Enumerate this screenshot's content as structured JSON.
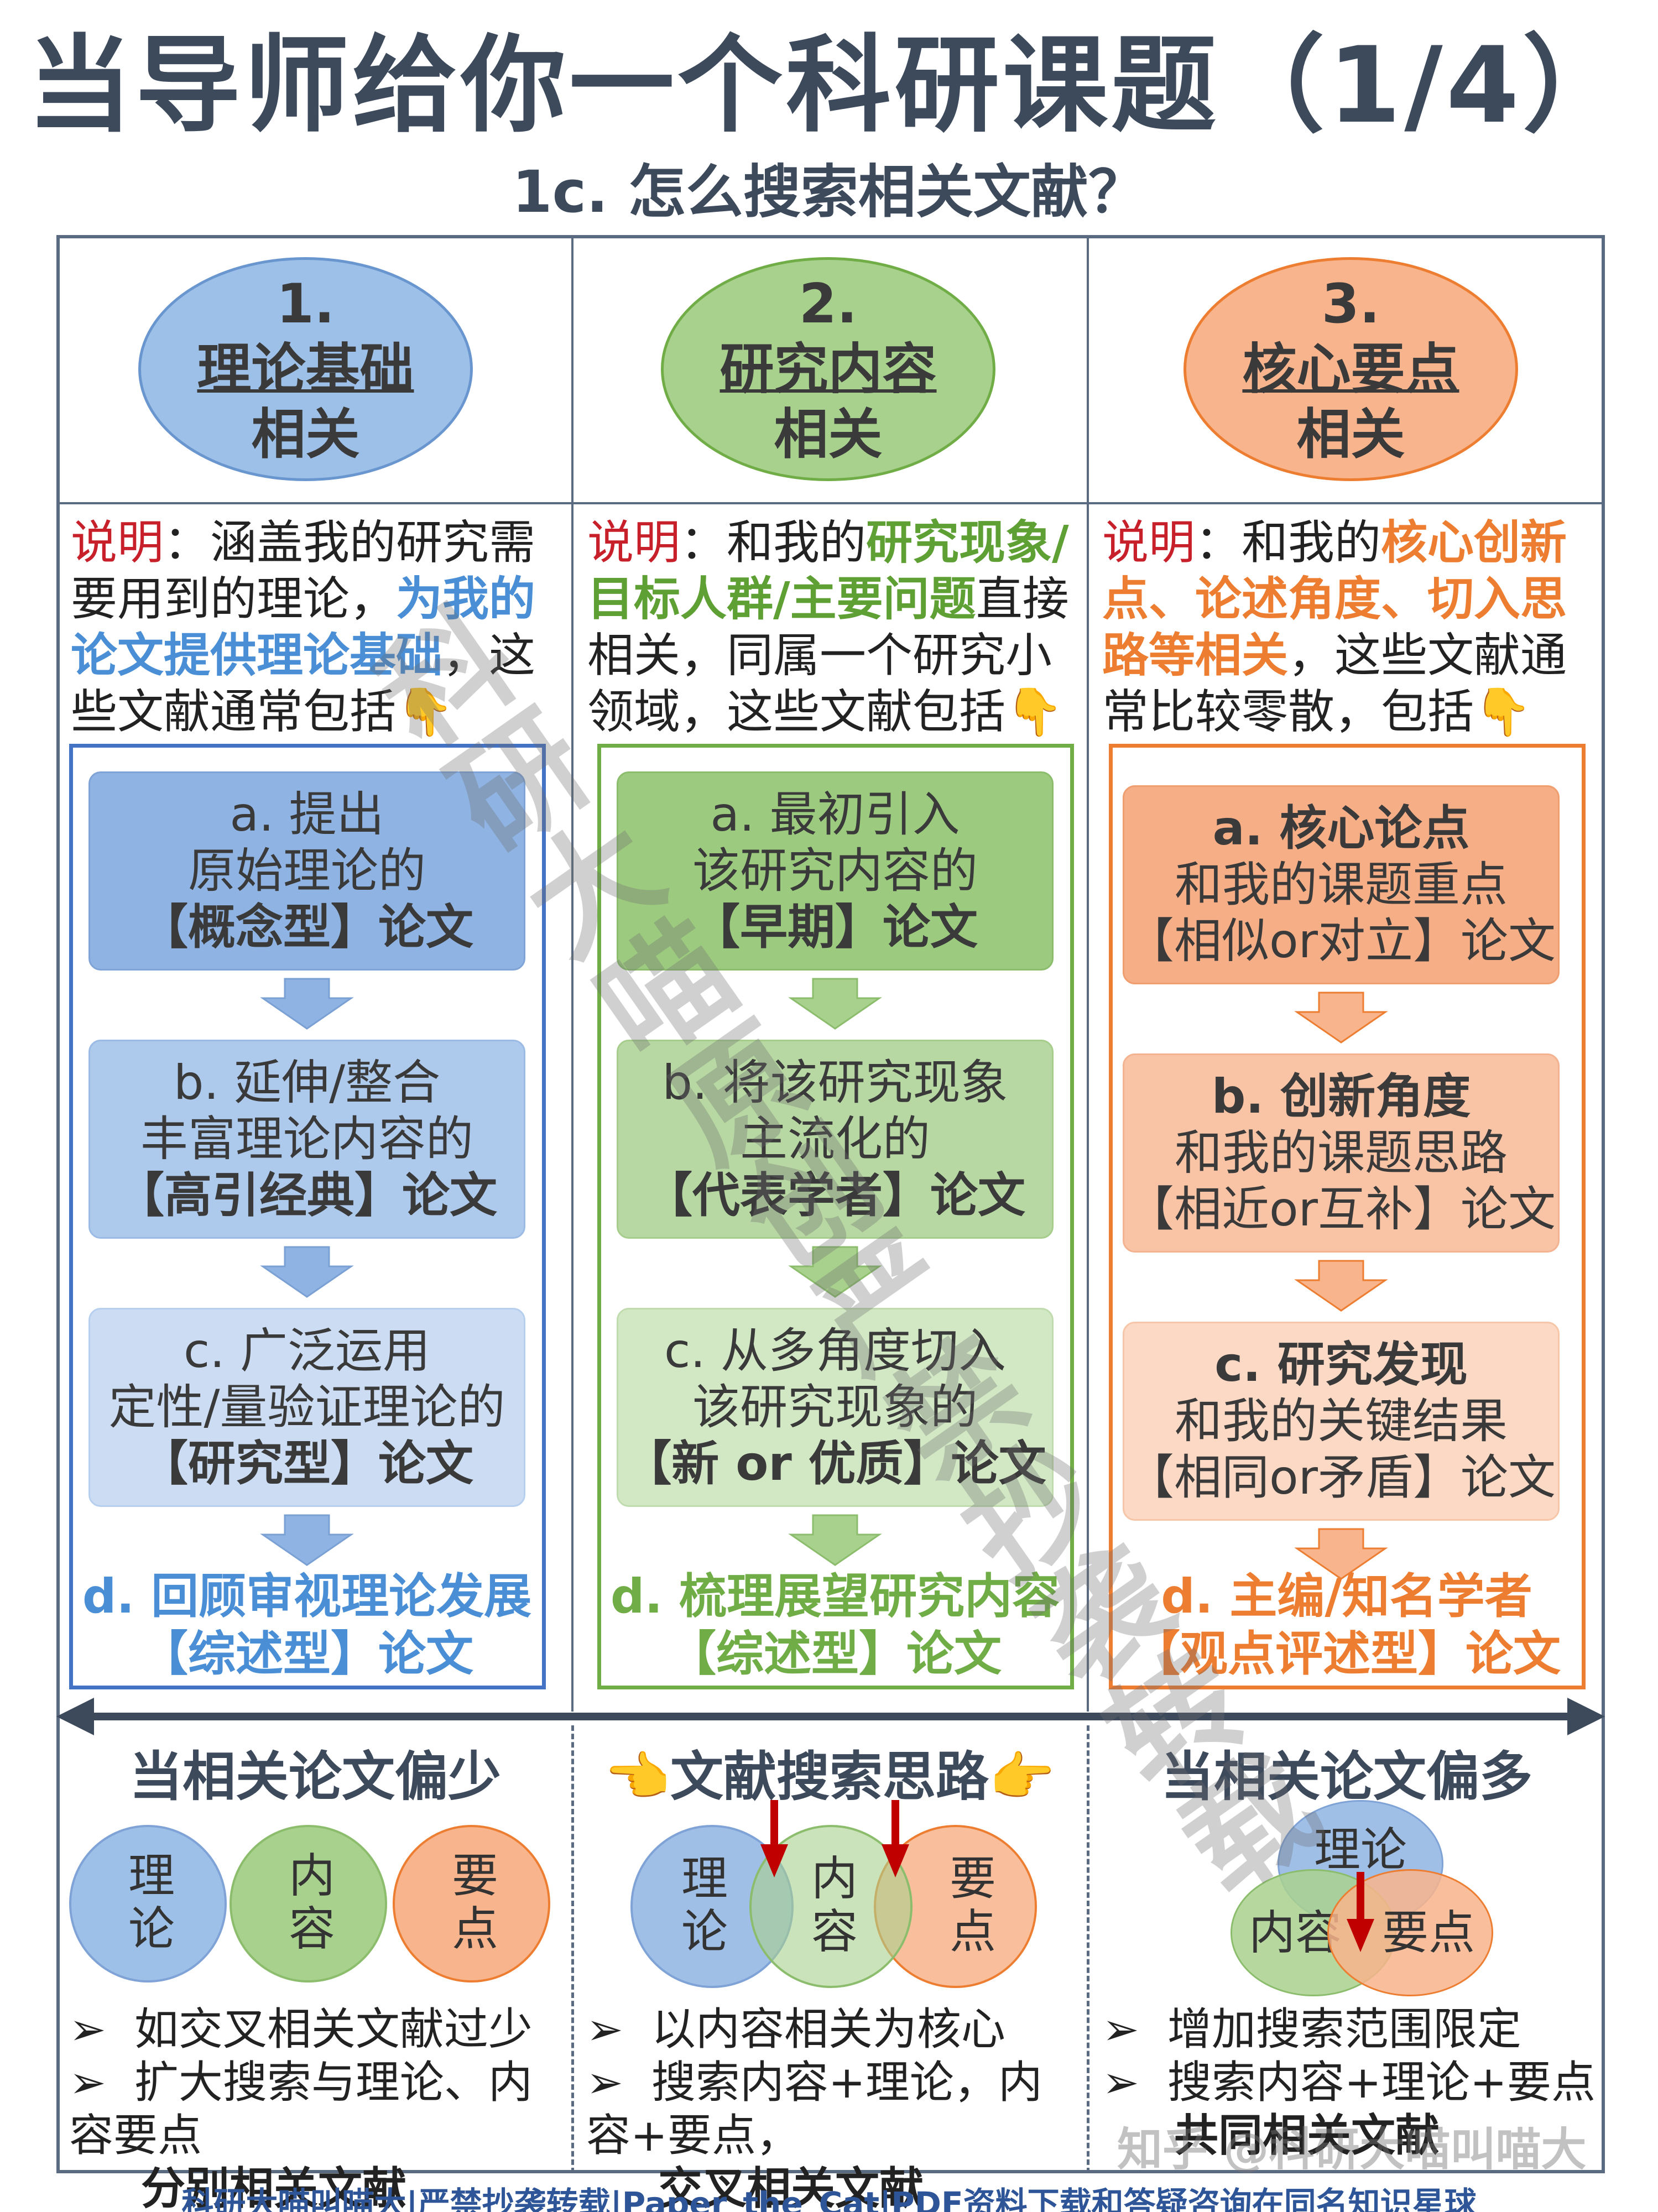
{
  "title": "当导师给你一个科研课题（1/4）",
  "subtitle": "1c. 怎么搜索相关文献？",
  "colors": {
    "blue": "#4472c4",
    "green": "#70ad47",
    "orange": "#ed7d31",
    "red": "#c8202a"
  },
  "columns": [
    {
      "num": "1.",
      "name": "理论基础",
      "suffix": "相关",
      "desc_label": "说明",
      "desc_parts": [
        "：涵盖我的研究需要用到的理论，",
        "为我的论文提供理论基础",
        "，这些文献通常包括👇"
      ],
      "items": [
        {
          "lines": [
            "a. 提出",
            "原始理论的",
            "【概念型】论文"
          ]
        },
        {
          "lines": [
            "b. 延伸/整合",
            "丰富理论内容的",
            "【高引经典】论文"
          ]
        },
        {
          "lines": [
            "c. 广泛运用",
            "定性/量验证理论的",
            "【研究型】论文"
          ]
        }
      ],
      "summary": [
        "d. 回顾审视理论发展",
        "【综述型】论文"
      ]
    },
    {
      "num": "2.",
      "name": "研究内容",
      "suffix": "相关",
      "desc_label": "说明",
      "desc_parts": [
        "：和我的",
        "研究现象/目标人群/主要问题",
        "直接相关，同属一个研究小领域，这些文献包括👇"
      ],
      "items": [
        {
          "lines": [
            "a. 最初引入",
            "该研究内容的",
            "【早期】论文"
          ]
        },
        {
          "lines": [
            "b. 将该研究现象",
            "主流化的",
            "【代表学者】论文"
          ]
        },
        {
          "lines": [
            "c. 从多角度切入",
            "该研究现象的",
            "【新 or 优质】论文"
          ]
        }
      ],
      "summary": [
        "d. 梳理展望研究内容",
        "【综述型】论文"
      ]
    },
    {
      "num": "3.",
      "name": "核心要点",
      "suffix": "相关",
      "desc_label": "说明",
      "desc_parts": [
        "：和我的",
        "核心创新点、论述角度、切入思路等相关",
        "，这些文献通常比较零散，包括👇"
      ],
      "items": [
        {
          "lines": [
            "a. 核心论点",
            "和我的课题重点",
            "【相似or对立】论文"
          ]
        },
        {
          "lines": [
            "b. 创新角度",
            "和我的课题思路",
            "【相近or互补】论文"
          ]
        },
        {
          "lines": [
            "c. 研究发现",
            "和我的关键结果",
            "【相同or矛盾】论文"
          ]
        }
      ],
      "summary": [
        "d. 主编/知名学者",
        "【观点评述型】论文"
      ]
    }
  ],
  "bottom": {
    "left_head": "当相关论文偏少",
    "mid_head": "👈文献搜索思路👉",
    "right_head": "当相关论文偏多",
    "circle_theory": "理论",
    "circle_content": "内容",
    "circle_point": "要点",
    "left_bullets": [
      "如交叉相关文献过少",
      "扩大搜索与理论、内容要点",
      "分别相关文献"
    ],
    "mid_bullets": [
      "以内容相关为核心",
      "搜索内容+理论，内容+要点，",
      "交叉相关文献"
    ],
    "right_bullets": [
      "增加搜索范围限定",
      "搜索内容+理论+要点",
      "共同相关文献"
    ]
  },
  "watermark": [
    "科研大喵原创严禁抄袭转载",
    "知乎 @科研大喵叫喵大"
  ],
  "footer": "科研大喵叫喵大|严禁抄袭转载|Paper_the_Cat|PDF资料下载和答疑咨询在同名知识星球"
}
